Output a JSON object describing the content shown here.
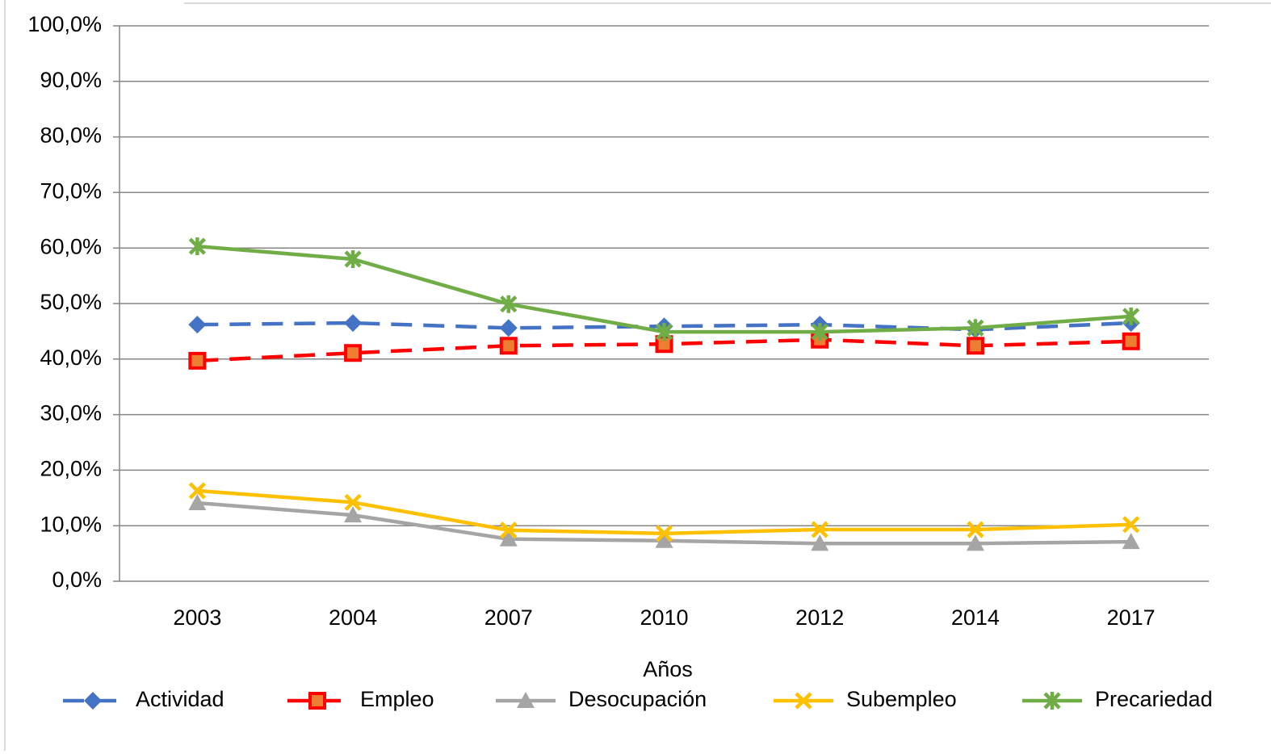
{
  "chart_data": {
    "type": "line",
    "x_label": "Años",
    "categories": [
      "2003",
      "2004",
      "2007",
      "2010",
      "2012",
      "2014",
      "2017"
    ],
    "series": [
      {
        "name": "Actividad",
        "color": "#4472c4",
        "marker": "diamond",
        "dashed": true,
        "values": [
          46.2,
          46.5,
          45.6,
          45.9,
          46.2,
          45.3,
          46.5
        ]
      },
      {
        "name": "Empleo",
        "color": "#ff0000",
        "marker": "square",
        "dashed": true,
        "values": [
          39.7,
          41.1,
          42.4,
          42.7,
          43.5,
          42.4,
          43.2
        ]
      },
      {
        "name": "Desocupación",
        "color": "#a5a5a5",
        "marker": "triangle",
        "dashed": false,
        "values": [
          14.1,
          11.9,
          7.6,
          7.3,
          6.8,
          6.8,
          7.1
        ]
      },
      {
        "name": "Subempleo",
        "color": "#ffc000",
        "marker": "x",
        "dashed": false,
        "values": [
          16.3,
          14.2,
          9.2,
          8.6,
          9.3,
          9.3,
          10.2
        ]
      },
      {
        "name": "Precariedad",
        "color": "#70ad47",
        "marker": "star",
        "dashed": false,
        "values": [
          60.3,
          58.0,
          49.9,
          44.9,
          44.9,
          45.6,
          47.7
        ]
      }
    ],
    "ylim": [
      0,
      100
    ],
    "yticks": [
      {
        "value": 0,
        "label": "0,0%"
      },
      {
        "value": 10,
        "label": "10,0%"
      },
      {
        "value": 20,
        "label": "20,0%"
      },
      {
        "value": 30,
        "label": "30,0%"
      },
      {
        "value": 40,
        "label": "40,0%"
      },
      {
        "value": 50,
        "label": "50,0%"
      },
      {
        "value": 60,
        "label": "60,0%"
      },
      {
        "value": 70,
        "label": "70,0%"
      },
      {
        "value": 80,
        "label": "80,0%"
      },
      {
        "value": 90,
        "label": "90,0%"
      },
      {
        "value": 100,
        "label": "100,0%"
      }
    ],
    "grid": true,
    "legend": "bottom"
  }
}
